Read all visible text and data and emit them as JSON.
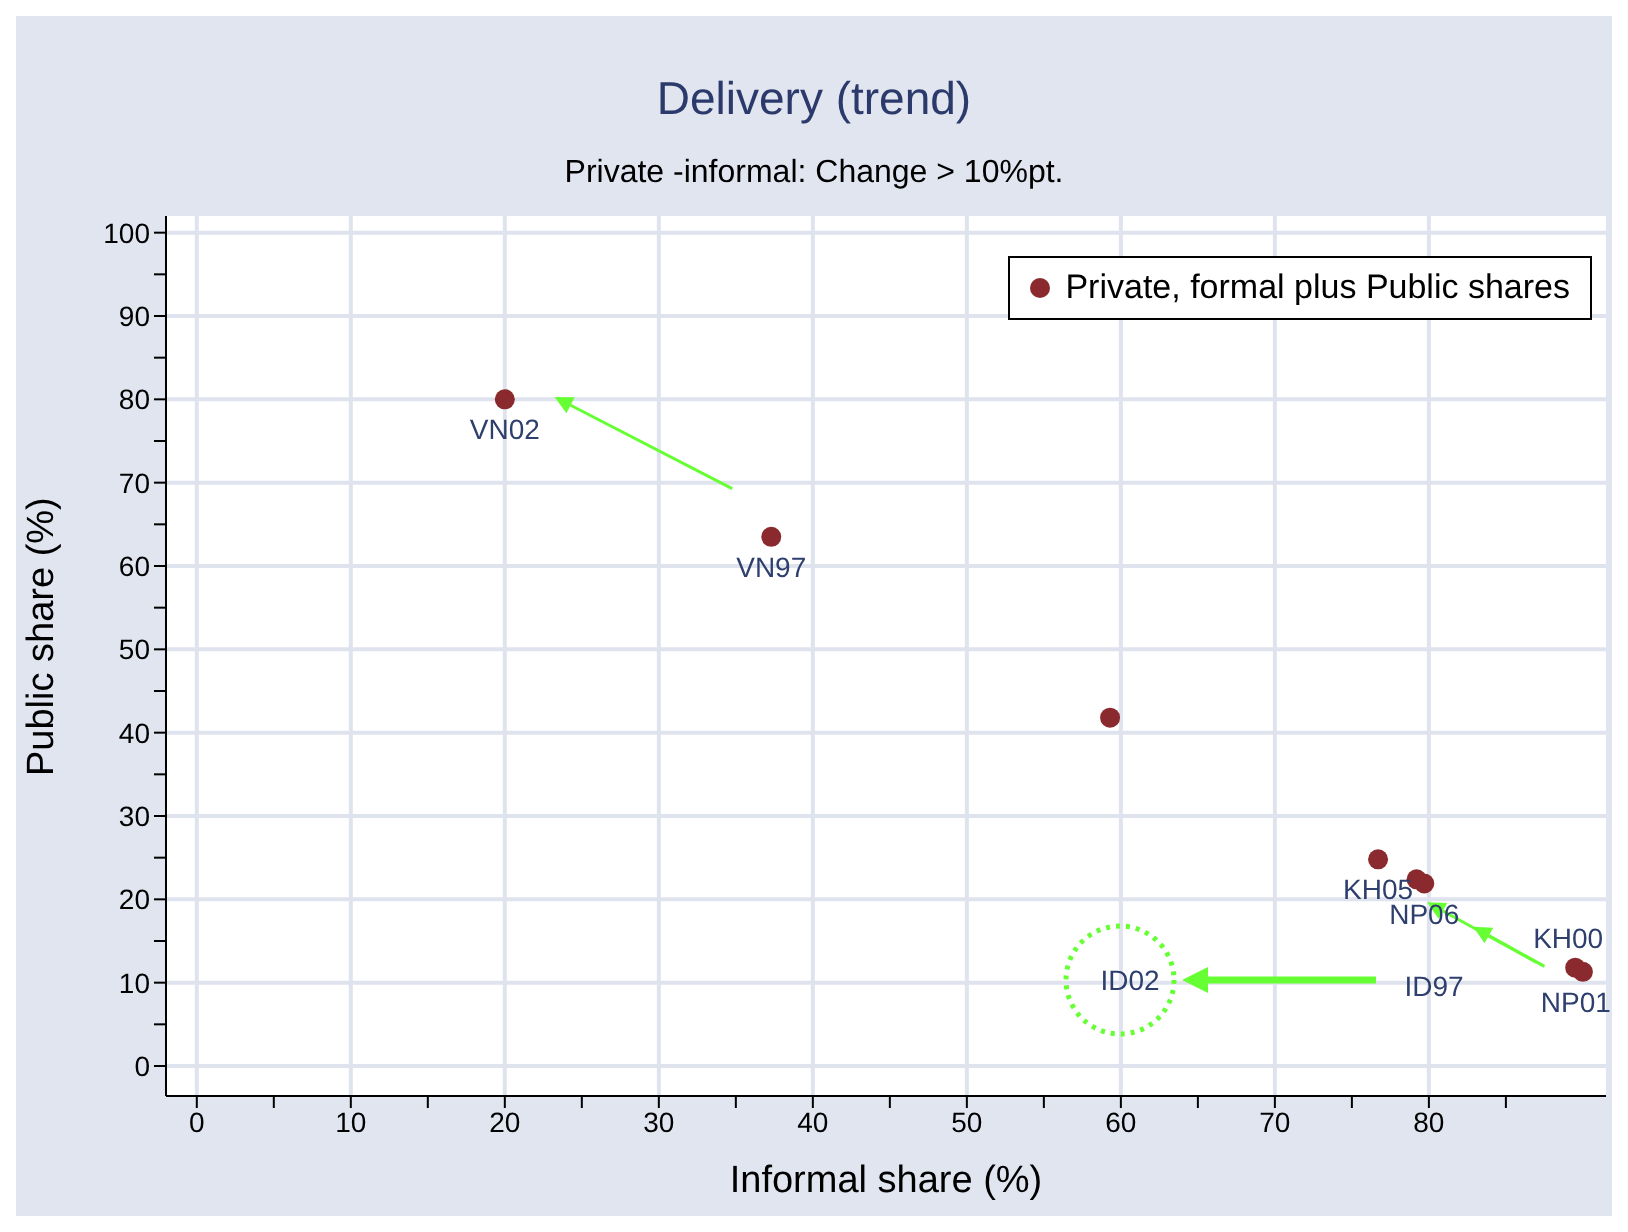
{
  "chart_data": {
    "type": "scatter",
    "title": "Delivery (trend)",
    "subtitle": "Private -informal: Change > 10%pt.",
    "xlabel": "Informal share (%)",
    "ylabel": "Public share (%)",
    "x": [
      20,
      37.3,
      59.3,
      76.7,
      79.2,
      79.7,
      89.5,
      90
    ],
    "series": [
      {
        "name": "Private, formal plus Public shares",
        "color": "#8b2a2e",
        "values": [
          80,
          63.5,
          41.8,
          24.8,
          22.4,
          21.9,
          11.8,
          11.3
        ],
        "value_labels": [
          "VN02",
          "VN97",
          null,
          "KH05",
          null,
          "NP06",
          "KH00",
          "NP01"
        ]
      }
    ],
    "annotations": [
      "ID02",
      "ID97"
    ],
    "xlim": [
      -2,
      91.5
    ],
    "xticks": [
      0,
      {
        "value": 5,
        "label": null
      },
      10,
      {
        "value": 15,
        "label": null
      },
      20,
      {
        "value": 25,
        "label": null
      },
      30,
      {
        "value": 35,
        "label": null
      },
      40,
      {
        "value": 45,
        "label": null
      },
      50,
      {
        "value": 55,
        "label": null
      },
      60,
      {
        "value": 65,
        "label": null
      },
      70,
      {
        "value": 75,
        "label": null
      },
      80,
      {
        "value": 85,
        "label": null
      }
    ],
    "ylim": [
      -3.6,
      102
    ],
    "yticks": [
      0,
      {
        "value": 5,
        "label": null
      },
      10,
      {
        "value": 15,
        "label": null
      },
      20,
      {
        "value": 25,
        "label": null
      },
      30,
      {
        "value": 35,
        "label": null
      },
      40,
      {
        "value": 45,
        "label": null
      },
      50,
      {
        "value": 55,
        "label": null
      },
      60,
      {
        "value": 65,
        "label": null
      },
      70,
      {
        "value": 75,
        "label": null
      },
      80,
      {
        "value": 85,
        "label": null
      },
      90,
      {
        "value": 95,
        "label": null
      },
      100
    ],
    "grid": true,
    "legend": "top right",
    "marker": "circle"
  }
}
